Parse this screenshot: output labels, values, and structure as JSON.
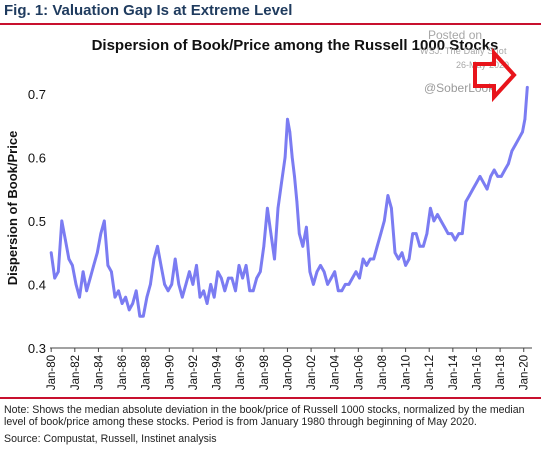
{
  "figure_title": "Fig. 1: Valuation Gap Is at Extreme Level",
  "watermark": {
    "posted": "Posted on",
    "source": "WSJ: The Daily Shot",
    "date": "26-May-2020",
    "handle": "@SoberLook"
  },
  "note": "Note: Shows the median absolute deviation in the book/price of Russell 1000 stocks, normalized by the median level of book/price among these stocks. Period is from January 1980 through beginning of May 2020.",
  "source": "Source: Compustat, Russell, Instinet analysis",
  "colors": {
    "line": "#7b7cf2",
    "arrow": "#e8141b",
    "title_rule": "#c8102e"
  },
  "chart_data": {
    "type": "line",
    "title": "Dispersion of Book/Price among the Russell 1000 Stocks",
    "ylabel": "Dispersion of Book/Price",
    "xlabel": "",
    "ylim": [
      0.3,
      0.75
    ],
    "xlim": [
      1979.9,
      2020.7
    ],
    "yticks": [
      0.3,
      0.4,
      0.5,
      0.6,
      0.7
    ],
    "ytick_labels": [
      "0.3",
      "0.4",
      "0.5",
      "0.6",
      "0.7"
    ],
    "xticks": [
      1980,
      1982,
      1984,
      1986,
      1988,
      1990,
      1992,
      1994,
      1996,
      1998,
      2000,
      2002,
      2004,
      2006,
      2008,
      2010,
      2012,
      2014,
      2016,
      2018,
      2020
    ],
    "xtick_labels": [
      "Jan-80",
      "Jan-82",
      "Jan-84",
      "Jan-86",
      "Jan-88",
      "Jan-90",
      "Jan-92",
      "Jan-94",
      "Jan-96",
      "Jan-98",
      "Jan-00",
      "Jan-02",
      "Jan-04",
      "Jan-06",
      "Jan-08",
      "Jan-10",
      "Jan-12",
      "Jan-14",
      "Jan-16",
      "Jan-18",
      "Jan-20"
    ],
    "grid": false,
    "x": [
      1980.0,
      1980.3,
      1980.6,
      1980.9,
      1981.2,
      1981.5,
      1981.8,
      1982.1,
      1982.4,
      1982.7,
      1983.0,
      1983.3,
      1983.6,
      1983.9,
      1984.2,
      1984.5,
      1984.8,
      1985.1,
      1985.4,
      1985.7,
      1986.0,
      1986.3,
      1986.6,
      1986.9,
      1987.2,
      1987.5,
      1987.8,
      1988.1,
      1988.4,
      1988.7,
      1989.0,
      1989.3,
      1989.6,
      1989.9,
      1990.2,
      1990.5,
      1990.8,
      1991.1,
      1991.4,
      1991.7,
      1992.0,
      1992.3,
      1992.6,
      1992.9,
      1993.2,
      1993.5,
      1993.8,
      1994.1,
      1994.4,
      1994.7,
      1995.0,
      1995.3,
      1995.6,
      1995.9,
      1996.2,
      1996.5,
      1996.8,
      1997.1,
      1997.4,
      1997.7,
      1998.0,
      1998.3,
      1998.6,
      1998.9,
      1999.2,
      1999.5,
      1999.8,
      2000.0,
      2000.2,
      2000.4,
      2000.6,
      2000.8,
      2001.0,
      2001.3,
      2001.6,
      2001.9,
      2002.2,
      2002.5,
      2002.8,
      2003.1,
      2003.4,
      2003.7,
      2004.0,
      2004.3,
      2004.6,
      2004.9,
      2005.2,
      2005.5,
      2005.8,
      2006.1,
      2006.4,
      2006.7,
      2007.0,
      2007.3,
      2007.6,
      2007.9,
      2008.2,
      2008.5,
      2008.8,
      2009.1,
      2009.4,
      2009.7,
      2010.0,
      2010.3,
      2010.6,
      2010.9,
      2011.2,
      2011.5,
      2011.8,
      2012.1,
      2012.4,
      2012.7,
      2013.0,
      2013.3,
      2013.6,
      2013.9,
      2014.2,
      2014.5,
      2014.8,
      2015.1,
      2015.4,
      2015.7,
      2016.0,
      2016.3,
      2016.6,
      2016.9,
      2017.2,
      2017.5,
      2017.8,
      2018.1,
      2018.4,
      2018.7,
      2019.0,
      2019.3,
      2019.6,
      2019.9,
      2020.1,
      2020.3
    ],
    "values": [
      0.45,
      0.41,
      0.42,
      0.5,
      0.47,
      0.44,
      0.43,
      0.4,
      0.38,
      0.42,
      0.39,
      0.41,
      0.43,
      0.45,
      0.48,
      0.5,
      0.43,
      0.42,
      0.38,
      0.39,
      0.37,
      0.38,
      0.36,
      0.37,
      0.39,
      0.35,
      0.35,
      0.38,
      0.4,
      0.44,
      0.46,
      0.43,
      0.4,
      0.39,
      0.4,
      0.44,
      0.4,
      0.38,
      0.4,
      0.42,
      0.4,
      0.43,
      0.38,
      0.39,
      0.37,
      0.4,
      0.38,
      0.42,
      0.41,
      0.39,
      0.41,
      0.41,
      0.39,
      0.43,
      0.41,
      0.43,
      0.39,
      0.39,
      0.41,
      0.42,
      0.46,
      0.52,
      0.48,
      0.44,
      0.52,
      0.56,
      0.6,
      0.66,
      0.64,
      0.6,
      0.57,
      0.53,
      0.48,
      0.46,
      0.49,
      0.42,
      0.4,
      0.42,
      0.43,
      0.42,
      0.4,
      0.41,
      0.42,
      0.39,
      0.39,
      0.4,
      0.4,
      0.41,
      0.42,
      0.41,
      0.44,
      0.43,
      0.44,
      0.44,
      0.46,
      0.48,
      0.5,
      0.54,
      0.52,
      0.45,
      0.44,
      0.45,
      0.43,
      0.44,
      0.48,
      0.48,
      0.46,
      0.46,
      0.48,
      0.52,
      0.5,
      0.51,
      0.5,
      0.49,
      0.48,
      0.48,
      0.47,
      0.48,
      0.48,
      0.53,
      0.54,
      0.55,
      0.56,
      0.57,
      0.56,
      0.55,
      0.57,
      0.58,
      0.57,
      0.57,
      0.58,
      0.59,
      0.61,
      0.62,
      0.63,
      0.64,
      0.66,
      0.71
    ]
  }
}
